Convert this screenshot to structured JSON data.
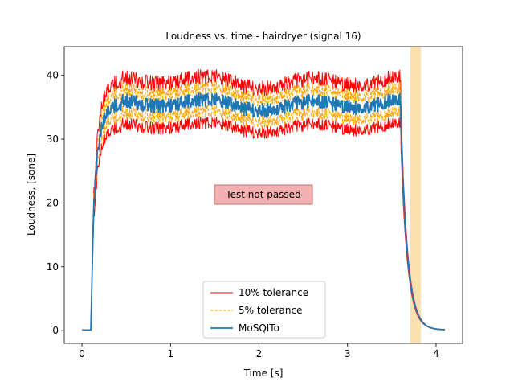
{
  "chart_data": {
    "type": "line",
    "title": "Loudness vs. time - hairdryer (signal 16)",
    "xlabel": "Time [s]",
    "ylabel": "Loudness, [sone]",
    "xlim": [
      -0.2,
      4.3
    ],
    "ylim": [
      -2,
      44.5
    ],
    "xticks": [
      0,
      1,
      2,
      3,
      4
    ],
    "xtick_labels": [
      "0",
      "1",
      "2",
      "3",
      "4"
    ],
    "yticks": [
      0,
      10,
      20,
      30,
      40
    ],
    "ytick_labels": [
      "0",
      "10",
      "20",
      "30",
      "40"
    ],
    "grid": false,
    "legend_position": "lower center",
    "annotation": {
      "text": "Test not passed",
      "x": 2.05,
      "y": 21.2,
      "facecolor": "#f4b0b0",
      "edgecolor": "#c07070"
    },
    "highlight_span": {
      "x": [
        3.71,
        3.83
      ],
      "color": "#fde0b0"
    },
    "envelope_description": {
      "signal_start": 0.1,
      "signal_end": 3.6,
      "plateau_level": 35.5,
      "offset_end": 4.1
    },
    "series": [
      {
        "name": "10% tolerance",
        "color": "#ff0000",
        "style": "solid",
        "width": 1.0,
        "factors": [
          1.1,
          0.9
        ]
      },
      {
        "name": "5% tolerance",
        "color": "#ffa500",
        "style": "dashed",
        "width": 1.0,
        "factors": [
          1.05,
          0.95
        ]
      },
      {
        "name": "MoSQITo",
        "color": "#1f77b4",
        "style": "solid",
        "width": 1.8,
        "factors": [
          1.0
        ]
      }
    ]
  }
}
